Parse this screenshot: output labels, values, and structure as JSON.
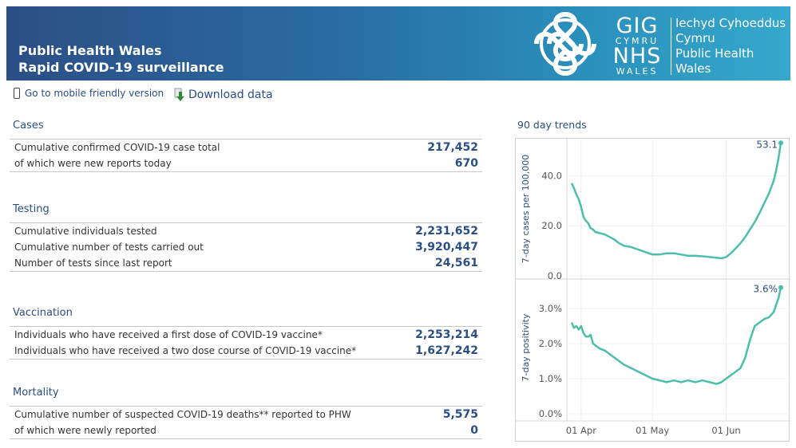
{
  "header": {
    "title_line1": "Public Health Wales",
    "title_line2": "Rapid COVID-19 surveillance",
    "logo": {
      "gig": "GIG",
      "cymru": "CYMRU",
      "nhs": "NHS",
      "wales": "WALES",
      "org_welsh_1": "Iechyd Cyhoeddus",
      "org_welsh_2": "Cymru",
      "org_english_1": "Public Health",
      "org_english_2": "Wales"
    }
  },
  "toolbar": {
    "mobile_label": "Go to mobile friendly version",
    "download_label": "Download data"
  },
  "sections": {
    "cases": {
      "title": "Cases",
      "rows": [
        {
          "label": "Cumulative confirmed COVID-19 case total",
          "value": "217,452"
        },
        {
          "label": "of which were new reports today",
          "value": "670"
        }
      ]
    },
    "testing": {
      "title": "Testing",
      "rows": [
        {
          "label": "Cumulative individuals tested",
          "value": "2,231,652"
        },
        {
          "label": "Cumulative number of tests carried out",
          "value": "3,920,447"
        },
        {
          "label": "Number of tests since last report",
          "value": "24,561"
        }
      ]
    },
    "vaccination": {
      "title": "Vaccination",
      "rows": [
        {
          "label": "Individuals who have received a first dose of COVID-19 vaccine*",
          "value": "2,253,214"
        },
        {
          "label": "Individuals who have received a two dose course of COVID-19 vaccine*",
          "value": "1,627,242"
        }
      ]
    },
    "mortality": {
      "title": "Mortality",
      "rows": [
        {
          "label": "Cumulative number of suspected COVID-19 deaths** reported to PHW",
          "value": "5,575"
        },
        {
          "label": "of which were newly reported",
          "value": "0"
        }
      ]
    }
  },
  "trends": {
    "title": "90 day trends"
  },
  "colors": {
    "accent": "#2a4e86",
    "line": "#4bbfa9",
    "header_left": "#2b4f86",
    "header_right": "#36a8cc"
  },
  "chart_data": [
    {
      "type": "line",
      "ylabel": "7-day cases per 100,000",
      "ylim": [
        0,
        53.5
      ],
      "yticks": [
        "0.0",
        "20.0",
        "40.0"
      ],
      "ytick_values": [
        0,
        20,
        40
      ],
      "x_tick_labels": [
        "01 Apr",
        "01 May",
        "01 Jun"
      ],
      "x_tick_days": [
        4,
        34,
        65
      ],
      "last_value_label": "53.1",
      "series": [
        {
          "x": [
            0,
            1,
            2,
            3,
            4,
            5,
            6,
            7,
            8,
            9,
            10,
            12,
            14,
            16,
            18,
            20,
            22,
            25,
            28,
            31,
            34,
            37,
            40,
            43,
            46,
            49,
            52,
            55,
            58,
            61,
            63,
            65,
            67,
            69,
            71,
            73,
            75,
            77,
            79,
            81,
            83,
            85,
            86,
            87,
            88
          ],
          "y": [
            37.0,
            35.0,
            32.5,
            30.5,
            27.5,
            23.5,
            22.0,
            21.0,
            19.0,
            18.5,
            17.5,
            17.0,
            16.5,
            15.5,
            14.5,
            13.0,
            12.0,
            11.5,
            10.5,
            9.5,
            8.5,
            8.5,
            9.0,
            9.0,
            8.5,
            8.0,
            8.0,
            7.8,
            7.5,
            7.2,
            7.0,
            7.5,
            9.0,
            11.0,
            13.0,
            15.5,
            18.5,
            21.5,
            25.0,
            29.0,
            33.0,
            38.0,
            42.0,
            47.0,
            53.1
          ]
        }
      ]
    },
    {
      "type": "line",
      "ylabel": "7-day positivity",
      "ylim": [
        0,
        3.75
      ],
      "yticks": [
        "0.0%",
        "1.0%",
        "2.0%",
        "3.0%"
      ],
      "ytick_values": [
        0,
        1,
        2,
        3
      ],
      "x_tick_labels": [
        "01 Apr",
        "01 May",
        "01 Jun"
      ],
      "x_tick_days": [
        4,
        34,
        65
      ],
      "last_value_label": "3.6%",
      "series": [
        {
          "x": [
            0,
            1,
            2,
            3,
            4,
            5,
            6,
            7,
            8,
            9,
            10,
            12,
            14,
            16,
            18,
            20,
            22,
            25,
            28,
            31,
            34,
            37,
            40,
            43,
            46,
            49,
            52,
            55,
            58,
            61,
            63,
            65,
            67,
            69,
            71,
            73,
            75,
            77,
            79,
            81,
            83,
            85,
            86,
            87,
            88
          ],
          "y": [
            2.6,
            2.45,
            2.5,
            2.4,
            2.5,
            2.3,
            2.2,
            2.2,
            2.25,
            2.0,
            1.95,
            1.85,
            1.8,
            1.7,
            1.6,
            1.5,
            1.4,
            1.3,
            1.2,
            1.1,
            1.0,
            0.95,
            0.9,
            0.95,
            0.9,
            0.95,
            0.9,
            0.95,
            0.9,
            0.85,
            0.9,
            1.0,
            1.1,
            1.2,
            1.3,
            1.6,
            2.1,
            2.5,
            2.6,
            2.7,
            2.75,
            2.9,
            3.1,
            3.3,
            3.6
          ]
        }
      ]
    }
  ]
}
